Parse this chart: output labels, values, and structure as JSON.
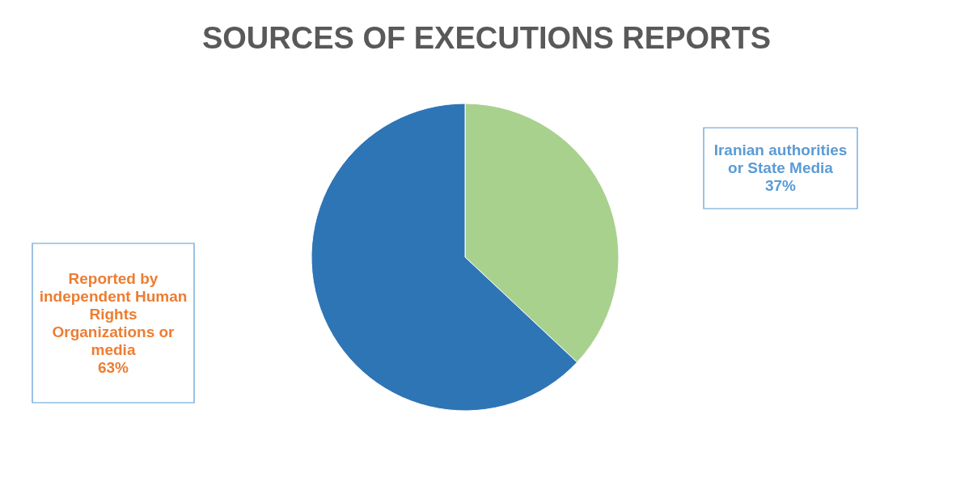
{
  "chart_data": {
    "type": "pie",
    "title": "SOURCES OF EXECUTIONS REPORTS",
    "categories": [
      "Iranian authorities or State Media",
      "Reported by independent Human Rights Organizations or media"
    ],
    "values": [
      37,
      63
    ],
    "colors": [
      "#a9d18e",
      "#2e75b6"
    ],
    "value_labels": [
      "37%",
      "63%"
    ],
    "legend": false
  }
}
